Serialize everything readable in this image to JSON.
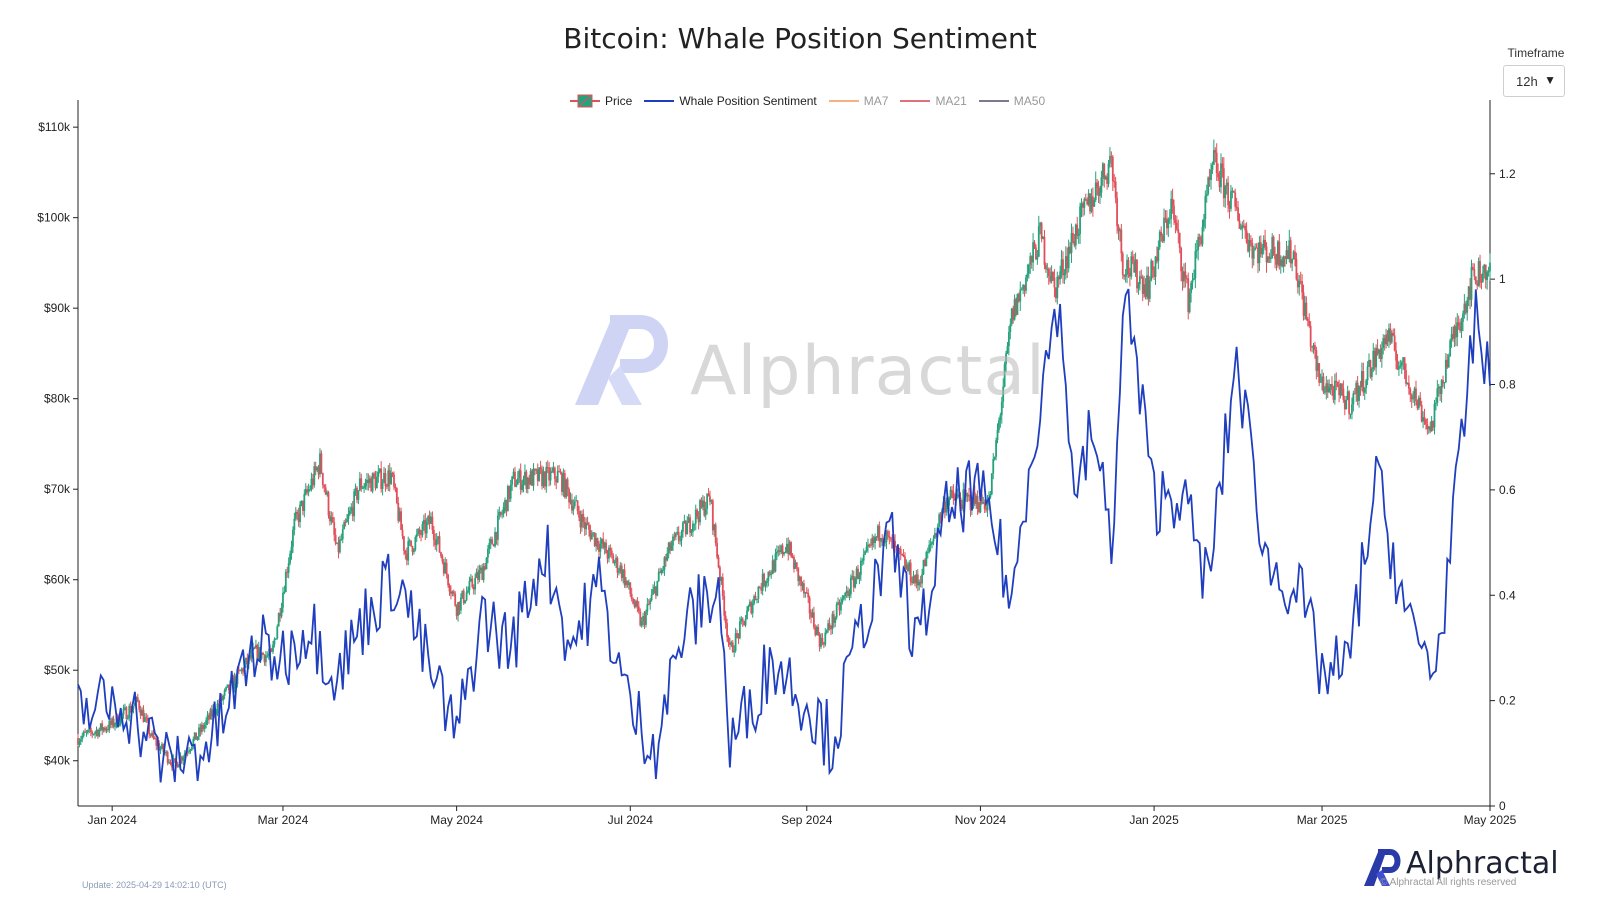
{
  "title": "Bitcoin: Whale Position Sentiment",
  "timeframe": {
    "label": "Timeframe",
    "value": "12h"
  },
  "legend": [
    {
      "name": "Price",
      "color": "#26a17b",
      "active": true
    },
    {
      "name": "Whale Position Sentiment",
      "color": "#1f3fbf",
      "active": true
    },
    {
      "name": "MA7",
      "color": "#f4b183",
      "active": false
    },
    {
      "name": "MA21",
      "color": "#e0707a",
      "active": false
    },
    {
      "name": "MA50",
      "color": "#7a7a90",
      "active": false
    }
  ],
  "watermark": "Alphractal",
  "footer": {
    "update": "Update: 2025-04-29 14:02:10 (UTC)",
    "brand": "Alphractal",
    "copyright": "© Alphractal All rights reserved"
  },
  "colors": {
    "up": "#26a17b",
    "down": "#e0505a",
    "sentiment": "#1f3fbf",
    "axis": "#222222"
  },
  "chart_data": {
    "type": "line",
    "title": "Bitcoin: Whale Position Sentiment",
    "x_ticks": [
      "Jan 2024",
      "Mar 2024",
      "May 2024",
      "Jul 2024",
      "Sep 2024",
      "Nov 2024",
      "Jan 2025",
      "Mar 2025",
      "May 2025"
    ],
    "x_range": [
      "2023-12-20",
      "2025-04-29"
    ],
    "y_left": {
      "label": "Price",
      "range": [
        35000,
        113000
      ],
      "ticks": [
        40000,
        50000,
        60000,
        70000,
        80000,
        90000,
        100000,
        110000
      ],
      "tick_labels": [
        "$40k",
        "$50k",
        "$60k",
        "$70k",
        "$80k",
        "$90k",
        "$100k",
        "$110k"
      ]
    },
    "y_right": {
      "label": "Whale Position Sentiment",
      "range": [
        0,
        1.34
      ],
      "ticks": [
        0,
        0.2,
        0.4,
        0.6,
        0.8,
        1,
        1.2
      ],
      "tick_labels": [
        "0",
        "0.2",
        "0.4",
        "0.6",
        "0.8",
        "1",
        "1.2"
      ]
    },
    "series": [
      {
        "name": "Price",
        "style": "candlestick",
        "points": [
          [
            "2023-12-20",
            42500
          ],
          [
            "2024-01-01",
            44000
          ],
          [
            "2024-01-10",
            46500
          ],
          [
            "2024-01-15",
            42500
          ],
          [
            "2024-01-23",
            39500
          ],
          [
            "2024-01-31",
            42800
          ],
          [
            "2024-02-10",
            47500
          ],
          [
            "2024-02-20",
            52000
          ],
          [
            "2024-02-26",
            51500
          ],
          [
            "2024-03-05",
            66000
          ],
          [
            "2024-03-14",
            73000
          ],
          [
            "2024-03-20",
            63000
          ],
          [
            "2024-03-28",
            70500
          ],
          [
            "2024-04-08",
            71500
          ],
          [
            "2024-04-13",
            63000
          ],
          [
            "2024-04-22",
            66500
          ],
          [
            "2024-05-01",
            57000
          ],
          [
            "2024-05-10",
            61000
          ],
          [
            "2024-05-21",
            71000
          ],
          [
            "2024-06-06",
            71500
          ],
          [
            "2024-06-15",
            66000
          ],
          [
            "2024-06-28",
            61000
          ],
          [
            "2024-07-05",
            55000
          ],
          [
            "2024-07-15",
            63500
          ],
          [
            "2024-07-29",
            69000
          ],
          [
            "2024-08-05",
            52000
          ],
          [
            "2024-08-15",
            59000
          ],
          [
            "2024-08-25",
            64000
          ],
          [
            "2024-09-06",
            53000
          ],
          [
            "2024-09-15",
            58500
          ],
          [
            "2024-09-27",
            65500
          ],
          [
            "2024-10-10",
            59500
          ],
          [
            "2024-10-20",
            69000
          ],
          [
            "2024-11-04",
            68500
          ],
          [
            "2024-11-12",
            89000
          ],
          [
            "2024-11-22",
            98000
          ],
          [
            "2024-11-27",
            92000
          ],
          [
            "2024-12-05",
            99000
          ],
          [
            "2024-12-17",
            106500
          ],
          [
            "2024-12-21",
            95000
          ],
          [
            "2024-12-30",
            92500
          ],
          [
            "2025-01-07",
            101500
          ],
          [
            "2025-01-13",
            91000
          ],
          [
            "2025-01-22",
            106000
          ],
          [
            "2025-02-05",
            96500
          ],
          [
            "2025-02-19",
            96000
          ],
          [
            "2025-02-28",
            82000
          ],
          [
            "2025-03-11",
            79500
          ],
          [
            "2025-03-24",
            87000
          ],
          [
            "2025-04-08",
            76500
          ],
          [
            "2025-04-14",
            84500
          ],
          [
            "2025-04-23",
            93500
          ],
          [
            "2025-04-29",
            94500
          ]
        ]
      },
      {
        "name": "Whale Position Sentiment",
        "style": "line",
        "points": [
          [
            "2023-12-20",
            0.18
          ],
          [
            "2024-01-05",
            0.2
          ],
          [
            "2024-01-20",
            0.08
          ],
          [
            "2024-02-05",
            0.12
          ],
          [
            "2024-02-20",
            0.3
          ],
          [
            "2024-03-01",
            0.28
          ],
          [
            "2024-03-10",
            0.35
          ],
          [
            "2024-03-20",
            0.25
          ],
          [
            "2024-04-01",
            0.38
          ],
          [
            "2024-04-10",
            0.44
          ],
          [
            "2024-04-20",
            0.28
          ],
          [
            "2024-05-01",
            0.13
          ],
          [
            "2024-05-10",
            0.36
          ],
          [
            "2024-05-20",
            0.3
          ],
          [
            "2024-06-01",
            0.49
          ],
          [
            "2024-06-10",
            0.3
          ],
          [
            "2024-06-20",
            0.42
          ],
          [
            "2024-07-01",
            0.18
          ],
          [
            "2024-07-10",
            0.12
          ],
          [
            "2024-07-20",
            0.34
          ],
          [
            "2024-08-01",
            0.42
          ],
          [
            "2024-08-05",
            0.11
          ],
          [
            "2024-08-20",
            0.28
          ],
          [
            "2024-09-01",
            0.2
          ],
          [
            "2024-09-10",
            0.12
          ],
          [
            "2024-09-20",
            0.34
          ],
          [
            "2024-10-01",
            0.5
          ],
          [
            "2024-10-10",
            0.3
          ],
          [
            "2024-10-20",
            0.55
          ],
          [
            "2024-10-28",
            0.6
          ],
          [
            "2024-11-05",
            0.55
          ],
          [
            "2024-11-12",
            0.38
          ],
          [
            "2024-11-18",
            0.65
          ],
          [
            "2024-11-28",
            0.96
          ],
          [
            "2024-12-05",
            0.57
          ],
          [
            "2024-12-10",
            0.72
          ],
          [
            "2024-12-17",
            0.5
          ],
          [
            "2024-12-22",
            0.98
          ],
          [
            "2025-01-01",
            0.58
          ],
          [
            "2025-01-10",
            0.6
          ],
          [
            "2025-01-20",
            0.42
          ],
          [
            "2025-01-30",
            0.85
          ],
          [
            "2025-02-10",
            0.45
          ],
          [
            "2025-02-20",
            0.42
          ],
          [
            "2025-03-01",
            0.25
          ],
          [
            "2025-03-10",
            0.26
          ],
          [
            "2025-03-20",
            0.62
          ],
          [
            "2025-04-01",
            0.33
          ],
          [
            "2025-04-10",
            0.26
          ],
          [
            "2025-04-18",
            0.62
          ],
          [
            "2025-04-24",
            0.94
          ],
          [
            "2025-04-29",
            0.78
          ]
        ]
      }
    ]
  }
}
